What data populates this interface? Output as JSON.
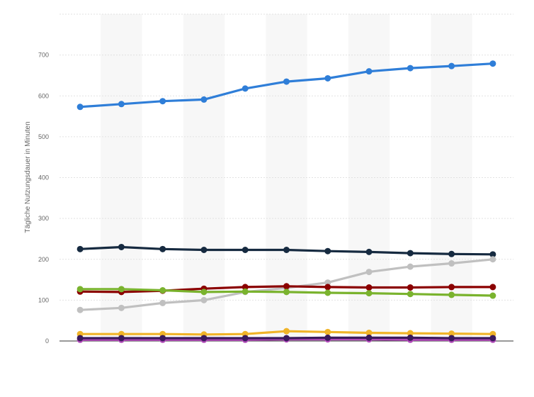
{
  "chart_data": {
    "type": "line",
    "title": "",
    "xlabel": "",
    "ylabel": "Tägliche Nutzungsdauer in Minuten",
    "ylim": [
      0,
      800
    ],
    "yticks": [
      0,
      100,
      200,
      300,
      400,
      500,
      600,
      700
    ],
    "x_count": 11,
    "grid": true,
    "legend": "none",
    "series": [
      {
        "color": "#2f7ed8",
        "values": [
          573,
          580,
          587,
          591,
          618,
          635,
          643,
          660,
          668,
          673,
          679
        ]
      },
      {
        "color": "#162a40",
        "values": [
          225,
          230,
          225,
          223,
          223,
          223,
          220,
          218,
          215,
          213,
          212
        ]
      },
      {
        "color": "#c0c0c0",
        "values": [
          76,
          81,
          93,
          100,
          120,
          130,
          143,
          169,
          182,
          190,
          200
        ]
      },
      {
        "color": "#8b0000",
        "values": [
          121,
          120,
          123,
          128,
          132,
          134,
          132,
          131,
          131,
          132,
          132
        ]
      },
      {
        "color": "#7ab32e",
        "values": [
          127,
          127,
          124,
          120,
          121,
          120,
          118,
          117,
          115,
          113,
          111
        ]
      },
      {
        "color": "#f0b429",
        "values": [
          17,
          17,
          17,
          16,
          17,
          24,
          22,
          20,
          19,
          18,
          17
        ]
      },
      {
        "color": "#b04ab8",
        "values": [
          3,
          3,
          3,
          3,
          3,
          4,
          4,
          4,
          3,
          3,
          3
        ]
      },
      {
        "color": "#3a1a5c",
        "values": [
          7,
          7,
          7,
          7,
          7,
          7,
          8,
          8,
          8,
          7,
          7
        ]
      }
    ]
  }
}
